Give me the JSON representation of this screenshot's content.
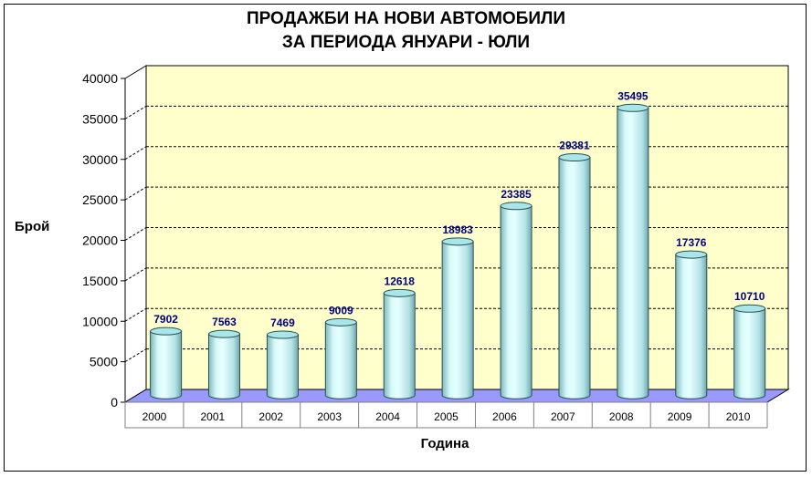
{
  "chart_data": {
    "type": "bar",
    "title_line1": "ПРОДАЖБИ НА НОВИ АВТОМОБИЛИ",
    "title_line2": "ЗА ПЕРИОДА ЯНУАРИ - ЮЛИ",
    "xlabel": "Година",
    "ylabel": "Брой",
    "categories": [
      "2000",
      "2001",
      "2002",
      "2003",
      "2004",
      "2005",
      "2006",
      "2007",
      "2008",
      "2009",
      "2010"
    ],
    "values": [
      7902,
      7563,
      7469,
      9009,
      12618,
      18983,
      23385,
      29381,
      35495,
      17376,
      10710
    ],
    "ylim": [
      0,
      40000
    ],
    "yticks": [
      "0",
      "5000",
      "10000",
      "15000",
      "20000",
      "25000",
      "30000",
      "35000",
      "40000"
    ],
    "grid": true,
    "legend": "none",
    "colors": {
      "bar_fill": "#c8f4f4",
      "bar_top": "#a8e6ea",
      "wall": "#ffffcc",
      "floor": "#9999ff",
      "data_label": "#000080",
      "grid": "#000000"
    }
  }
}
